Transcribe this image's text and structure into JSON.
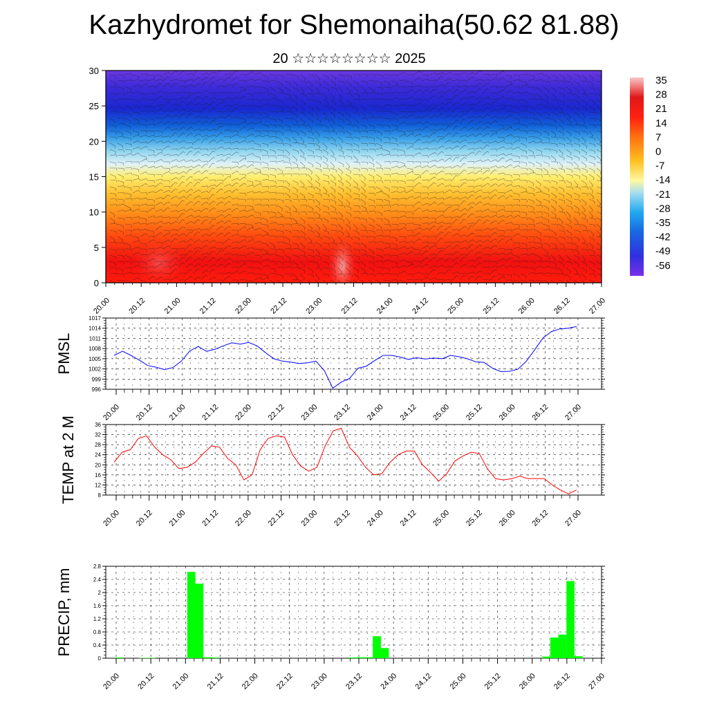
{
  "title": "Kazhydromet for Shemonaiha(50.62 81.88)",
  "subtitle": "20 ☆☆☆☆☆☆☆☆ 2025",
  "colors": {
    "pmsl_line": "#0000ff",
    "temp_line": "#ff0000",
    "precip_bar": "#00ff00",
    "grid": "#000000"
  },
  "chart_data": [
    {
      "type": "heatmap",
      "name": "cross-section",
      "x_ticks": [
        "20.00",
        "20.12",
        "21.00",
        "21.12",
        "22.00",
        "22.12",
        "23.00",
        "23.12",
        "24.00",
        "24.12",
        "25.00",
        "25.12",
        "26.00",
        "26.12",
        "27.00"
      ],
      "y_ticks": [
        0,
        5,
        10,
        15,
        20,
        25,
        30
      ],
      "ylim": [
        0,
        30
      ],
      "colorbar_labels": [
        "35",
        "28",
        "21",
        "14",
        "7",
        "0",
        "-7",
        "-14",
        "-21",
        "-28",
        "-35",
        "-42",
        "-49",
        "-56"
      ],
      "colorbar_range": [
        -60,
        38
      ],
      "overlay": "wind barbs / streamlines"
    },
    {
      "type": "line",
      "ylabel": "PMSL",
      "x_ticks": [
        "20.00",
        "20.12",
        "21.00",
        "21.12",
        "22.00",
        "22.12",
        "23.00",
        "23.12",
        "24.00",
        "24.12",
        "25.00",
        "25.12",
        "26.00",
        "26.12",
        "27.00"
      ],
      "y_ticks": [
        996,
        999,
        1002,
        1005,
        1008,
        1011,
        1014,
        1017
      ],
      "ylim": [
        996,
        1017
      ],
      "values": [
        1006,
        1007.2,
        1006,
        1004.6,
        1003,
        1002.5,
        1001.8,
        1002.4,
        1004.3,
        1007.3,
        1008.6,
        1007.2,
        1007.8,
        1008.8,
        1009.7,
        1009.3,
        1009.8,
        1008.8,
        1006.8,
        1005,
        1004.3,
        1004,
        1003.6,
        1003.8,
        1004.3,
        1001.5,
        996.3,
        998.1,
        999.2,
        1002.2,
        1002.8,
        1004.5,
        1006,
        1006,
        1005.5,
        1004.8,
        1005.3,
        1004.9,
        1005.2,
        1005,
        1006,
        1005.6,
        1005,
        1004.1,
        1003.9,
        1002.2,
        1001.2,
        1001.3,
        1001.9,
        1004.2,
        1007.6,
        1011.1,
        1013,
        1013.8,
        1014,
        1014.5
      ]
    },
    {
      "type": "line",
      "ylabel": "TEMP at 2 M",
      "x_ticks": [
        "20.00",
        "20.12",
        "21.00",
        "21.12",
        "22.00",
        "22.12",
        "23.00",
        "23.12",
        "24.00",
        "24.12",
        "25.00",
        "25.12",
        "26.00",
        "26.12",
        "27.00"
      ],
      "y_ticks": [
        8,
        12,
        16,
        20,
        24,
        28,
        32,
        36
      ],
      "ylim": [
        8,
        36
      ],
      "values": [
        21,
        25,
        26,
        30.5,
        31.5,
        27,
        24,
        22,
        18.5,
        19,
        21,
        24.5,
        27.5,
        27,
        22.5,
        20,
        14,
        16,
        26,
        30.5,
        31.5,
        31,
        24,
        19.5,
        17.5,
        19,
        27.5,
        33.5,
        34.5,
        27,
        23.5,
        19,
        16,
        16.5,
        21,
        24,
        25.5,
        25.5,
        20,
        17,
        13.5,
        16.5,
        21.5,
        23.5,
        25,
        24.5,
        18.5,
        14.5,
        14,
        14.5,
        15.5,
        14.5,
        14.5,
        14.5,
        12,
        10,
        8.5,
        10
      ]
    },
    {
      "type": "bar",
      "ylabel": "PRECIP, mm",
      "x_ticks": [
        "20.00",
        "20.12",
        "21.00",
        "21.12",
        "22.00",
        "22.12",
        "23.00",
        "23.12",
        "24.00",
        "24.12",
        "25.00",
        "25.12",
        "26.00",
        "26.12",
        "27.00"
      ],
      "y_ticks": [
        0,
        0.4,
        0.8,
        1.2,
        1.6,
        2.0,
        2.4,
        2.8
      ],
      "ylim": [
        0,
        2.8
      ],
      "values": [
        0,
        0.02,
        0,
        0,
        0.01,
        0.01,
        0,
        0,
        0,
        0,
        2.63,
        2.27,
        0.03,
        0.02,
        0,
        0,
        0,
        0,
        0,
        0,
        0,
        0,
        0,
        0,
        0,
        0,
        0,
        0,
        0,
        0,
        0.02,
        0.03,
        0.03,
        0.67,
        0.31,
        0,
        0,
        0,
        0,
        0,
        0,
        0,
        0,
        0,
        0,
        0,
        0,
        0,
        0,
        0,
        0,
        0,
        0,
        0,
        0.05,
        0.63,
        0.72,
        2.35,
        0.06,
        0,
        0
      ]
    }
  ]
}
